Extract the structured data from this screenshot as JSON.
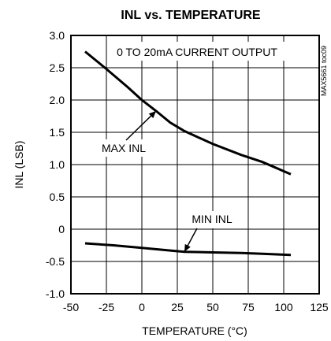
{
  "chart_data": {
    "type": "line",
    "title": "INL vs. TEMPERATURE",
    "xlabel": "TEMPERATURE (°C)",
    "ylabel": "INL (LSB)",
    "xlim": [
      -50,
      125
    ],
    "ylim": [
      -1.0,
      3.0
    ],
    "xticks": [
      -50,
      -25,
      0,
      25,
      50,
      75,
      100,
      125
    ],
    "xtick_labels": [
      "-50",
      "-25",
      "0",
      "25",
      "50",
      "75",
      "100",
      "125"
    ],
    "yticks": [
      3.0,
      2.5,
      2.0,
      1.5,
      1.0,
      0.5,
      0,
      -0.5,
      -1.0
    ],
    "ytick_labels": [
      "3.0",
      "2.5",
      "2.0",
      "1.5",
      "1.0",
      "0.5",
      "0",
      "-0.5",
      "-1.0"
    ],
    "grid": true,
    "annotation_box": "0 TO 20mA CURRENT OUTPUT",
    "figure_code": "MAX5661 toc09",
    "series": [
      {
        "name": "MAX INL",
        "x": [
          -40,
          -25,
          -10,
          0,
          10,
          20,
          30,
          50,
          70,
          85,
          105
        ],
        "y": [
          2.75,
          2.48,
          2.2,
          2.0,
          1.83,
          1.65,
          1.52,
          1.32,
          1.15,
          1.04,
          0.85
        ]
      },
      {
        "name": "MIN INL",
        "x": [
          -40,
          -20,
          0,
          20,
          30,
          50,
          70,
          85,
          105
        ],
        "y": [
          -0.22,
          -0.25,
          -0.29,
          -0.33,
          -0.35,
          -0.36,
          -0.37,
          -0.38,
          -0.4
        ]
      }
    ],
    "annotations": [
      {
        "label": "MAX INL",
        "points_to": [
          10,
          1.83
        ]
      },
      {
        "label": "MIN INL",
        "points_to": [
          30,
          -0.35
        ]
      }
    ]
  }
}
